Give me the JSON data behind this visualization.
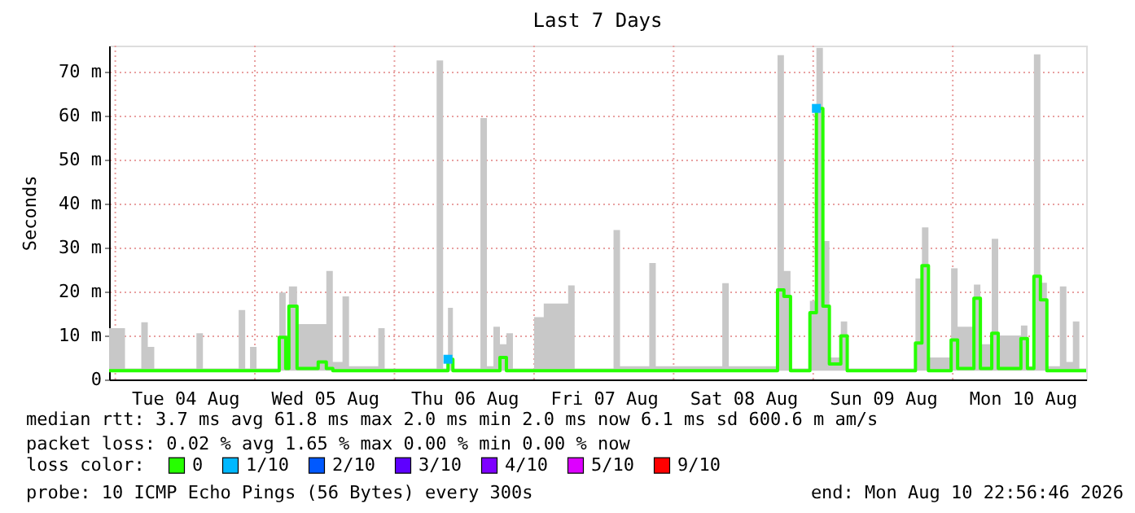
{
  "chart_data": {
    "type": "step",
    "title": "Last 7 Days",
    "ylabel": "Seconds",
    "legend_title": "loss color:",
    "legend": "bottom",
    "grid": true,
    "xlim": [
      "2026-08-03T22:56",
      "2026-08-10T22:56"
    ],
    "xticks": [
      {
        "value": "2026-08-04T12:00",
        "label": "Tue 04 Aug"
      },
      {
        "value": "2026-08-05T12:00",
        "label": "Wed 05 Aug"
      },
      {
        "value": "2026-08-06T12:00",
        "label": "Thu 06 Aug"
      },
      {
        "value": "2026-08-07T12:00",
        "label": "Fri 07 Aug"
      },
      {
        "value": "2026-08-08T12:00",
        "label": "Sat 08 Aug"
      },
      {
        "value": "2026-08-09T12:00",
        "label": "Sun 09 Aug"
      },
      {
        "value": "2026-08-10T12:00",
        "label": "Mon 10 Aug"
      }
    ],
    "ylim": [
      0,
      76
    ],
    "yticks": [
      0,
      {
        "value": 10,
        "label": "10 m"
      },
      {
        "value": 20,
        "label": "20 m"
      },
      {
        "value": 30,
        "label": "30 m"
      },
      {
        "value": 40,
        "label": "40 m"
      },
      {
        "value": 50,
        "label": "50 m"
      },
      {
        "value": 60,
        "label": "60 m"
      },
      {
        "value": 70,
        "label": "70 m"
      }
    ],
    "series": [
      {
        "name": "0",
        "color": "#26ff00",
        "x": [
          "2026-08-03T22:56",
          "2026-08-04T01:40",
          "2026-08-04T04:28",
          "2026-08-04T05:35",
          "2026-08-04T06:42",
          "2026-08-04T13:57",
          "2026-08-04T15:04",
          "2026-08-04T21:13",
          "2026-08-04T22:20",
          "2026-08-04T23:10",
          "2026-08-05T00:17",
          "2026-08-05T04:11",
          "2026-08-05T05:18",
          "2026-08-05T05:51",
          "2026-08-05T07:15",
          "2026-08-05T10:53",
          "2026-08-05T12:17",
          "2026-08-05T13:24",
          "2026-08-05T15:04",
          "2026-08-05T16:11",
          "2026-08-05T21:13",
          "2026-08-05T22:19",
          "2026-08-06T07:15",
          "2026-08-06T08:22",
          "2026-08-06T09:12",
          "2026-08-06T10:03",
          "2026-08-06T14:47",
          "2026-08-06T15:54",
          "2026-08-06T17:01",
          "2026-08-06T18:08",
          "2026-08-06T19:15",
          "2026-08-06T20:22",
          "2026-08-07T00:00",
          "2026-08-07T01:40",
          "2026-08-07T05:52",
          "2026-08-07T06:59",
          "2026-08-07T13:40",
          "2026-08-07T14:47",
          "2026-08-07T19:49",
          "2026-08-07T20:56",
          "2026-08-08T08:22",
          "2026-08-08T09:29",
          "2026-08-08T17:52",
          "2026-08-08T18:58",
          "2026-08-08T20:06",
          "2026-08-08T23:26",
          "2026-08-09T00:33",
          "2026-08-09T01:40",
          "2026-08-09T02:47",
          "2026-08-09T04:45",
          "2026-08-09T05:51",
          "2026-08-09T17:35",
          "2026-08-09T18:42",
          "2026-08-09T19:49",
          "2026-08-09T23:43",
          "2026-08-10T00:50",
          "2026-08-10T03:38",
          "2026-08-10T04:45",
          "2026-08-10T06:42",
          "2026-08-10T07:49",
          "2026-08-10T11:43",
          "2026-08-10T12:50",
          "2026-08-10T13:57",
          "2026-08-10T15:04",
          "2026-08-10T16:11",
          "2026-08-10T18:25",
          "2026-08-10T19:32",
          "2026-08-10T20:39",
          "2026-08-10T21:46",
          "2026-08-10T22:56"
        ],
        "values": [
          2.0,
          2.0,
          2.0,
          2.0,
          2.0,
          2.0,
          2.0,
          2.0,
          2.0,
          2.0,
          2.0,
          9.6,
          2.5,
          16.7,
          2.5,
          4.0,
          2.5,
          2.0,
          2.0,
          2.0,
          2.0,
          2.0,
          2.0,
          2.0,
          4.6,
          2.0,
          2.0,
          2.0,
          2.0,
          5.0,
          2.0,
          2.0,
          2.0,
          2.0,
          2.0,
          2.0,
          2.0,
          2.0,
          2.0,
          2.0,
          2.0,
          2.0,
          20.4,
          18.9,
          2.0,
          15.2,
          61.7,
          16.7,
          3.5,
          9.9,
          2.0,
          8.3,
          25.9,
          2.0,
          9.0,
          2.5,
          18.5,
          2.5,
          10.5,
          2.5,
          9.3,
          2.5,
          23.5,
          18.1,
          2.0,
          2.0,
          2.0,
          2.0,
          2.0,
          2.0
        ],
        "lower": [
          2.0,
          2.0,
          2.0,
          2.0,
          2.0,
          2.0,
          2.0,
          2.0,
          2.0,
          2.0,
          2.0,
          2.0,
          2.0,
          2.0,
          2.0,
          2.0,
          2.0,
          2.0,
          2.0,
          2.0,
          2.0,
          2.0,
          2.0,
          2.0,
          2.0,
          2.0,
          2.0,
          2.0,
          2.0,
          2.0,
          2.0,
          2.0,
          2.0,
          2.0,
          2.0,
          2.0,
          2.0,
          2.0,
          2.0,
          2.0,
          2.0,
          2.0,
          2.0,
          2.0,
          2.0,
          2.0,
          2.0,
          2.0,
          2.0,
          2.0,
          2.0,
          2.0,
          2.0,
          2.0,
          2.0,
          2.0,
          2.0,
          2.0,
          2.0,
          2.0,
          2.0,
          2.0,
          2.0,
          2.0,
          2.0,
          2.0,
          2.0,
          2.0,
          2.0,
          2.0
        ],
        "upper": [
          11.7,
          2.5,
          13.0,
          7.4,
          2.5,
          10.5,
          2.5,
          15.8,
          2.5,
          7.4,
          2.5,
          19.8,
          3.5,
          21.2,
          12.6,
          12.6,
          24.7,
          4.0,
          18.9,
          3.0,
          11.7,
          2.5,
          72.6,
          2.5,
          16.3,
          2.5,
          59.5,
          3.0,
          12.0,
          8.0,
          10.5,
          2.5,
          14.2,
          17.3,
          21.4,
          2.5,
          34.0,
          3.0,
          26.5,
          3.0,
          21.9,
          3.0,
          73.8,
          24.7,
          2.5,
          17.9,
          75.5,
          31.5,
          5.0,
          13.2,
          2.5,
          23.0,
          34.6,
          5.0,
          25.3,
          12.0,
          21.6,
          8.0,
          32.0,
          10.0,
          12.3,
          3.0,
          74.0,
          22.0,
          3.0,
          21.2,
          4.0,
          13.2,
          2.5,
          2.5
        ]
      },
      {
        "name": "1/10",
        "color": "#00b8ff",
        "type": "scatter",
        "marker": "square",
        "x": [
          "2026-08-06T09:12",
          "2026-08-09T00:33"
        ],
        "values": [
          4.6,
          61.7
        ]
      },
      {
        "name": "2/10",
        "color": "#0059ff",
        "type": "scatter",
        "marker": "square"
      },
      {
        "name": "3/10",
        "color": "#5e00ff",
        "type": "scatter",
        "marker": "square"
      },
      {
        "name": "4/10",
        "color": "#7e00ff",
        "type": "scatter",
        "marker": "square"
      },
      {
        "name": "5/10",
        "color": "#dd00ff",
        "type": "scatter",
        "marker": "square"
      },
      {
        "name": "9/10",
        "color": "#ff0000",
        "type": "scatter",
        "marker": "square"
      }
    ],
    "annotations": [
      "median rtt:  3.7 ms avg  61.8 ms max  2.0 ms min  2.0 ms now  6.1 ms sd  600.6 m am/s",
      "packet loss: 0.02 % avg  1.65 % max  0.00 % min  0.00 % now",
      "probe:       10 ICMP Echo Pings (56 Bytes) every 300s",
      "end: Mon Aug 10 22:56:46 2026"
    ]
  }
}
